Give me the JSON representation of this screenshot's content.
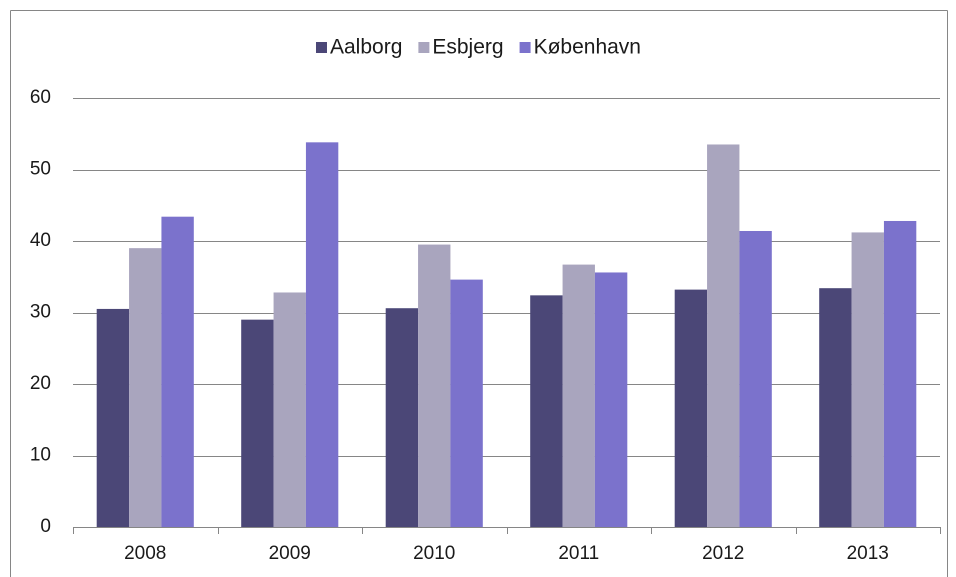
{
  "chart_data": {
    "type": "bar",
    "categories": [
      "2008",
      "2009",
      "2010",
      "2011",
      "2012",
      "2013"
    ],
    "series": [
      {
        "name": "Aalborg",
        "color": "#4b4777",
        "values": [
          30.5,
          29.0,
          30.6,
          32.4,
          33.2,
          33.4
        ]
      },
      {
        "name": "Esbjerg",
        "color": "#a9a5be",
        "values": [
          39.0,
          32.8,
          39.5,
          36.7,
          53.5,
          41.2
        ]
      },
      {
        "name": "København",
        "color": "#7b72cc",
        "values": [
          43.4,
          53.8,
          34.6,
          35.6,
          41.4,
          42.8
        ]
      }
    ],
    "ylim": [
      0,
      60
    ],
    "yticks": [
      0,
      10,
      20,
      30,
      40,
      50,
      60
    ],
    "grid": true,
    "legend": "top"
  }
}
